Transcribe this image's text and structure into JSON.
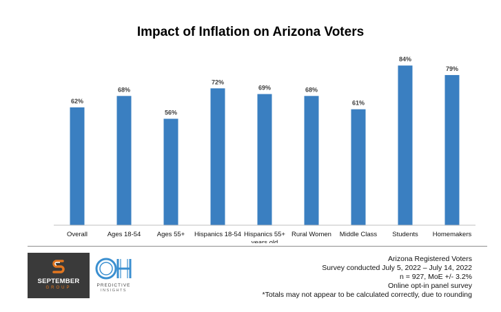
{
  "chart_data": {
    "type": "bar",
    "title": "Impact of Inflation on Arizona Voters",
    "categories": [
      [
        "Overall"
      ],
      [
        "Ages 18-54"
      ],
      [
        "Ages 55+"
      ],
      [
        "Hispanics 18-54"
      ],
      [
        "Hispanics 55+",
        "years old"
      ],
      [
        "Rural Women"
      ],
      [
        "Middle Class"
      ],
      [
        "Students"
      ],
      [
        "Homemakers"
      ]
    ],
    "values": [
      62,
      68,
      56,
      72,
      69,
      68,
      61,
      84,
      79
    ],
    "data_labels": [
      "62%",
      "68%",
      "56%",
      "72%",
      "69%",
      "68%",
      "61%",
      "84%",
      "79%"
    ],
    "ylim": [
      0,
      100
    ],
    "bar_color": "#3a7fc1",
    "grid": false,
    "legend": "none"
  },
  "footer": {
    "notes": [
      "Arizona Registered Voters",
      "Survey conducted July 5, 2022 – July 14, 2022",
      "n = 927, MoE +/- 3.2%",
      "Online opt-in panel survey",
      "*Totals may not appear to be calculated correctly, due to rounding"
    ],
    "logo_september": {
      "name": "SEPTEMBER",
      "sub": "GROUP",
      "accent": "#e3761f"
    },
    "logo_oh": {
      "line1": "PREDICTIVE",
      "line2": "INSIGHTS",
      "color": "#3a8fd0"
    }
  }
}
